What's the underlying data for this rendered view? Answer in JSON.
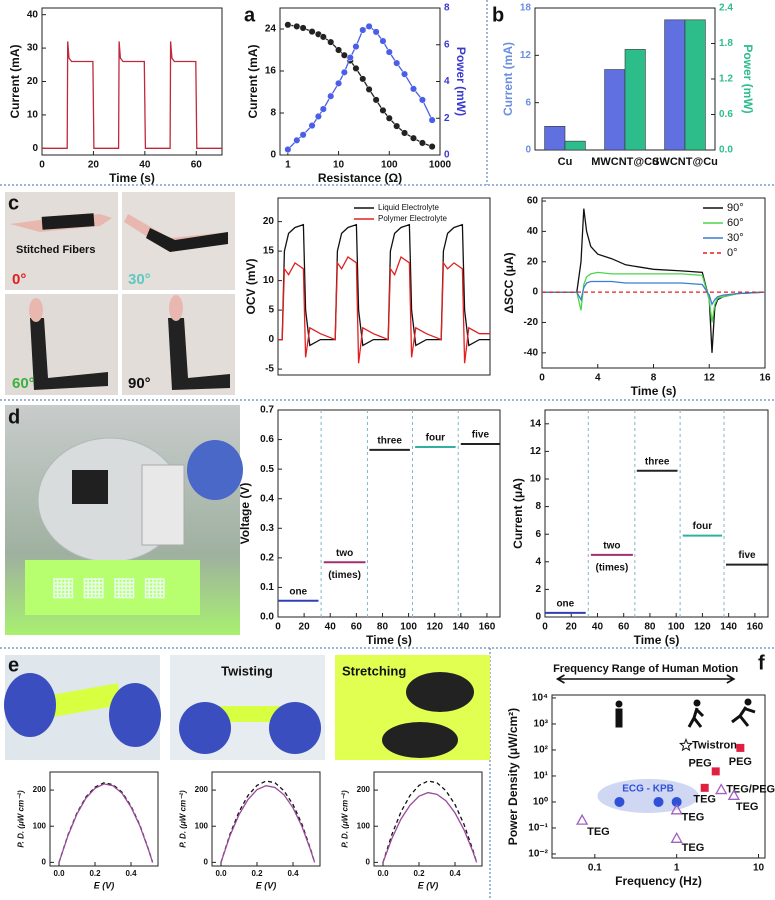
{
  "panel_labels": [
    "a",
    "b",
    "c",
    "d",
    "e",
    "f"
  ],
  "photo_labels": {
    "c": [
      "Stitched Fibers",
      "0°",
      "30°",
      "60°",
      "90°"
    ],
    "e": [
      "Twisting",
      "Stretching"
    ]
  },
  "chart_data": [
    {
      "type": "line",
      "xlabel": "Time (s)",
      "ylabel": "Current (mA)",
      "x": [
        0,
        9.8,
        10,
        10.5,
        11.5,
        19.8,
        20.2,
        29.8,
        30,
        30.5,
        31.5,
        39.8,
        40.2,
        49.8,
        50,
        50.5,
        51.5,
        59.8,
        60.2,
        70
      ],
      "series": [
        {
          "color": "#c0283c",
          "values": [
            0,
            0,
            32,
            27,
            26,
            26,
            0,
            0,
            32,
            27,
            26,
            26,
            0,
            0,
            32,
            27,
            26,
            26,
            0,
            0
          ]
        }
      ],
      "xlim": [
        0,
        70
      ],
      "ylim": [
        -2,
        42
      ],
      "xticks": [
        0,
        20,
        40,
        60
      ],
      "yticks": [
        0,
        10,
        20,
        30,
        40
      ]
    },
    {
      "type": "line",
      "xlabel": "Resistance (Ω)",
      "ylabel": "Current (mA)",
      "y2label": "Power (mW)",
      "y2label_color": "#3a3acf",
      "x": [
        1,
        1.5,
        2,
        3,
        4,
        5,
        7,
        10,
        13,
        17,
        22,
        30,
        40,
        55,
        75,
        100,
        140,
        200,
        300,
        450,
        700
      ],
      "series": [
        {
          "color": "#222222",
          "markers": true,
          "values": [
            24.8,
            24.5,
            24.2,
            23.5,
            23,
            22.5,
            21.5,
            20,
            19,
            18,
            16.5,
            14.5,
            12.5,
            10.5,
            8.5,
            7,
            5.5,
            4.2,
            3.2,
            2.3,
            1.6
          ]
        },
        {
          "color": "#4a5ee8",
          "axis": "y2",
          "markers": true,
          "values": [
            0.3,
            0.8,
            1.1,
            1.6,
            2.1,
            2.5,
            3.2,
            3.9,
            4.5,
            5.3,
            5.9,
            6.8,
            7,
            6.7,
            6.2,
            5.6,
            5,
            4.4,
            3.6,
            3,
            1.9
          ]
        }
      ],
      "xlog": true,
      "xlim": [
        0.7,
        1000
      ],
      "xticks": [
        1,
        10,
        100,
        1000
      ],
      "ylim": [
        0,
        28
      ],
      "yticks": [
        0,
        8,
        16,
        24
      ],
      "y2lim": [
        0,
        8
      ],
      "y2ticks": [
        0,
        2,
        4,
        6,
        8
      ]
    },
    {
      "type": "bar",
      "categories": [
        "Cu",
        "MWCNT@Cu",
        "SWCNT@Cu"
      ],
      "ylabel": "Current (mA)",
      "ylabel_color": "#6a8ee0",
      "y2label": "Power (mW)",
      "y2label_color": "#2dbd8a",
      "series": [
        {
          "color": "#6070e0",
          "values": [
            3,
            10.2,
            16.5
          ]
        },
        {
          "color": "#2dbd8a",
          "axis": "y2",
          "values": [
            0.15,
            1.7,
            2.2
          ]
        }
      ],
      "ylim": [
        0,
        18
      ],
      "yticks": [
        0,
        6,
        12,
        18
      ],
      "y2lim": [
        0,
        2.4
      ],
      "y2ticks": [
        {
          "value": 0,
          "label": "0.0"
        },
        0.6,
        1.2,
        1.8,
        2.4
      ]
    },
    {
      "type": "line",
      "ylabel": "OCV (mV)",
      "legend": "upper center",
      "x": [
        0,
        2,
        3,
        5,
        8,
        12,
        13,
        15,
        20,
        27,
        28,
        30,
        33,
        37,
        38,
        40,
        45,
        52,
        53,
        55,
        58,
        62,
        63,
        65,
        70,
        77,
        78,
        80,
        83,
        87,
        88,
        90,
        95,
        100
      ],
      "series": [
        {
          "name": "Liquid Electrolyte",
          "color": "#111111",
          "values": [
            0,
            0,
            15,
            18,
            19,
            19.5,
            5,
            -1,
            0,
            0,
            15,
            18,
            19,
            19.5,
            5,
            -1,
            0,
            0,
            15,
            18,
            19,
            19.5,
            5,
            -1,
            0,
            0,
            15,
            18,
            19,
            19.5,
            5,
            -1,
            0,
            0
          ]
        },
        {
          "name": "Polymer Electrolyte",
          "color": "#e02020",
          "values": [
            0,
            0,
            12,
            11,
            13,
            12,
            -3,
            2,
            1,
            0,
            13,
            12,
            14,
            13,
            -4,
            2,
            1,
            0,
            12,
            11,
            14,
            13,
            -3,
            2,
            1,
            0,
            13,
            12,
            13,
            12,
            -4,
            2,
            1,
            1
          ]
        }
      ],
      "xlim": [
        0,
        100
      ],
      "ylim": [
        -6,
        24
      ],
      "yticks": [
        -5,
        0,
        5,
        10,
        15,
        20
      ]
    },
    {
      "type": "line",
      "xlabel": "Time (s)",
      "ylabel": "ΔSCC (μA)",
      "legend": "upper right",
      "x": [
        0,
        2.5,
        2.8,
        3,
        3.2,
        3.5,
        4,
        5,
        6,
        8,
        10,
        11.5,
        12,
        12.2,
        12.4,
        12.6,
        13,
        14,
        16
      ],
      "series": [
        {
          "name": "90°",
          "color": "#111111",
          "values": [
            0,
            0,
            20,
            55,
            40,
            30,
            25,
            22,
            18,
            15,
            14,
            13,
            -5,
            -40,
            -10,
            -5,
            -3,
            -1,
            0
          ]
        },
        {
          "name": "60°",
          "color": "#4cd44c",
          "values": [
            0,
            0,
            -12,
            5,
            10,
            12,
            13,
            12,
            12,
            12,
            12,
            11,
            -5,
            -20,
            -8,
            -4,
            -3,
            -1,
            0
          ]
        },
        {
          "name": "30°",
          "color": "#3a7fd0",
          "values": [
            0,
            0,
            -5,
            3,
            6,
            7,
            7,
            7,
            6,
            6,
            6,
            5,
            -2,
            -8,
            -5,
            -3,
            -2,
            -1,
            0
          ]
        },
        {
          "name": "0°",
          "color": "#e02020",
          "dashed": true,
          "values": [
            0,
            0,
            0,
            0,
            0,
            0,
            0,
            0,
            0,
            0,
            0,
            0,
            0,
            0,
            0,
            0,
            0,
            0,
            0
          ]
        }
      ],
      "xlim": [
        0,
        16
      ],
      "xticks": [
        0,
        4,
        8,
        12,
        16
      ],
      "ylim": [
        -50,
        62
      ],
      "yticks": [
        -40,
        -20,
        0,
        20,
        40,
        60
      ]
    },
    {
      "type": "line",
      "xlabel": "Time (s)",
      "ylabel": "Voltage (V)",
      "series_labels": true,
      "segment_note": "(times)",
      "series": [
        {
          "name": "one",
          "color": "#3040b0",
          "x": [
            0,
            31
          ],
          "values": [
            0.055,
            0.055
          ]
        },
        {
          "name": "two",
          "color": "#a03070",
          "x": [
            35,
            67
          ],
          "values": [
            0.185,
            0.185
          ]
        },
        {
          "name": "three",
          "color": "#222222",
          "x": [
            70,
            101
          ],
          "values": [
            0.565,
            0.565
          ]
        },
        {
          "name": "four",
          "color": "#30b0a0",
          "x": [
            105,
            136
          ],
          "values": [
            0.575,
            0.575
          ]
        },
        {
          "name": "five",
          "color": "#222222",
          "x": [
            140,
            170
          ],
          "values": [
            0.585,
            0.585
          ]
        }
      ],
      "xlim": [
        0,
        170
      ],
      "xticks": [
        0,
        20,
        40,
        60,
        80,
        100,
        120,
        140,
        160
      ],
      "ylim": [
        0,
        0.7
      ],
      "yticks": [
        {
          "value": 0,
          "label": "0.0"
        },
        0.1,
        0.2,
        0.3,
        0.4,
        0.5,
        0.6,
        0.7
      ]
    },
    {
      "type": "line",
      "xlabel": "Time (s)",
      "ylabel": "Current (μA)",
      "series_labels": true,
      "segment_note": "(times)",
      "series": [
        {
          "name": "one",
          "color": "#3040b0",
          "x": [
            0,
            31
          ],
          "values": [
            0.3,
            0.3
          ]
        },
        {
          "name": "two",
          "color": "#a03070",
          "x": [
            35,
            67
          ],
          "values": [
            4.5,
            4.5
          ]
        },
        {
          "name": "three",
          "color": "#222222",
          "x": [
            70,
            101
          ],
          "values": [
            10.6,
            10.6
          ]
        },
        {
          "name": "four",
          "color": "#30b0a0",
          "x": [
            105,
            135
          ],
          "values": [
            5.9,
            5.9
          ]
        },
        {
          "name": "five",
          "color": "#222222",
          "x": [
            138,
            170
          ],
          "values": [
            3.8,
            3.8
          ]
        }
      ],
      "xlim": [
        0,
        170
      ],
      "xticks": [
        0,
        20,
        40,
        60,
        80,
        100,
        120,
        140,
        160
      ],
      "ylim": [
        0,
        15
      ],
      "yticks": [
        0,
        2,
        4,
        6,
        8,
        10,
        12,
        14
      ]
    },
    {
      "type": "line",
      "xlabel": "E (V)",
      "ylabel": "P. D. (μW cm⁻²)",
      "x": [
        0,
        0.05,
        0.1,
        0.15,
        0.2,
        0.25,
        0.3,
        0.35,
        0.4,
        0.45,
        0.5,
        0.52
      ],
      "series": [
        {
          "color": "#111111",
          "dashed": true,
          "values": [
            0,
            76,
            137,
            181,
            208,
            220,
            215,
            194,
            156,
            102,
            32,
            0
          ]
        },
        {
          "color": "#9a4a9a",
          "values": [
            0,
            74,
            134,
            178,
            205,
            217,
            212,
            191,
            153,
            100,
            31,
            0
          ]
        }
      ],
      "xlim": [
        -0.05,
        0.55
      ],
      "xticks": [
        {
          "value": 0,
          "label": "0.0"
        },
        0.2,
        0.4
      ],
      "ylim": [
        -10,
        250
      ],
      "yticks": [
        0,
        100,
        200
      ]
    },
    {
      "type": "line",
      "xlabel": "E (V)",
      "ylabel": "P. D. (μW cm⁻²)",
      "x": [
        0,
        0.05,
        0.1,
        0.15,
        0.2,
        0.25,
        0.3,
        0.35,
        0.4,
        0.45,
        0.5,
        0.52
      ],
      "series": [
        {
          "color": "#111111",
          "dashed": true,
          "values": [
            0,
            78,
            140,
            185,
            213,
            225,
            220,
            198,
            160,
            105,
            33,
            0
          ]
        },
        {
          "color": "#9a4a9a",
          "values": [
            0,
            74,
            132,
            174,
            201,
            212,
            207,
            187,
            151,
            99,
            31,
            0
          ]
        }
      ],
      "xlim": [
        -0.05,
        0.55
      ],
      "xticks": [
        {
          "value": 0,
          "label": "0.0"
        },
        0.2,
        0.4
      ],
      "ylim": [
        -10,
        250
      ],
      "yticks": [
        0,
        100,
        200
      ]
    },
    {
      "type": "line",
      "xlabel": "E (V)",
      "ylabel": "P. D. (μW cm⁻²)",
      "x": [
        0,
        0.05,
        0.1,
        0.15,
        0.2,
        0.25,
        0.3,
        0.35,
        0.4,
        0.45,
        0.5,
        0.52
      ],
      "series": [
        {
          "color": "#111111",
          "dashed": true,
          "values": [
            0,
            78,
            140,
            185,
            213,
            225,
            220,
            198,
            160,
            105,
            33,
            0
          ]
        },
        {
          "color": "#9a4a9a",
          "values": [
            0,
            67,
            120,
            158,
            183,
            193,
            188,
            170,
            137,
            90,
            29,
            0
          ]
        }
      ],
      "xlim": [
        -0.05,
        0.55
      ],
      "xticks": [
        {
          "value": 0,
          "label": "0.0"
        },
        0.2,
        0.4
      ],
      "ylim": [
        -10,
        250
      ],
      "yticks": [
        0,
        100,
        200
      ]
    },
    {
      "type": "scatter",
      "xlabel": "Frequency (Hz)",
      "ylabel": "Power Density (μW/cm²)",
      "range_label": "Frequency Range of Human Motion",
      "range": [
        0.035,
        5
      ],
      "groups": [
        {
          "label": "ECG - KPB",
          "marker": "circle",
          "color": "#3050d8",
          "x": [
            0.2,
            0.6,
            1
          ],
          "values": [
            1,
            1,
            1
          ]
        },
        {
          "label": "Twistron",
          "marker": "star",
          "color": "#ffffff",
          "x": [
            1.3
          ],
          "values": [
            150
          ]
        },
        {
          "label": "PEG",
          "marker": "square",
          "color": "#e02040",
          "x": [
            6
          ],
          "values": [
            120
          ]
        },
        {
          "label": "PEG",
          "marker": "square",
          "color": "#e02040",
          "x": [
            3
          ],
          "values": [
            15
          ]
        },
        {
          "label": "TEG",
          "marker": "square",
          "color": "#e02040",
          "x": [
            2.2
          ],
          "values": [
            3.5
          ]
        },
        {
          "label": "TEG/PEG",
          "marker": "triangle",
          "color": "#a060c0",
          "x": [
            3.5
          ],
          "values": [
            3
          ]
        },
        {
          "label": "TEG",
          "marker": "triangle",
          "color": "#a060c0",
          "x": [
            5
          ],
          "values": [
            1.8
          ]
        },
        {
          "label": "TEG",
          "marker": "triangle",
          "color": "#a060c0",
          "x": [
            1
          ],
          "values": [
            0.5
          ]
        },
        {
          "label": "TEG",
          "marker": "triangle",
          "color": "#a060c0",
          "x": [
            1
          ],
          "values": [
            0.04
          ]
        },
        {
          "label": "TEG",
          "marker": "triangle",
          "color": "#a060c0",
          "x": [
            0.07
          ],
          "values": [
            0.2
          ]
        }
      ],
      "xlog": true,
      "ylog": true,
      "xlim": [
        0.03,
        12
      ],
      "ylim": [
        0.007,
        13000
      ],
      "xticks": [
        0.1,
        1,
        10
      ],
      "yticks": [
        {
          "value": 0.01,
          "label": "10⁻²"
        },
        {
          "value": 0.1,
          "label": "10⁻¹"
        },
        {
          "value": 1,
          "label": "10⁰"
        },
        {
          "value": 10,
          "label": "10¹"
        },
        {
          "value": 100,
          "label": "10²"
        },
        {
          "value": 1000,
          "label": "10³"
        },
        {
          "value": 10000,
          "label": "10⁴"
        }
      ]
    }
  ]
}
